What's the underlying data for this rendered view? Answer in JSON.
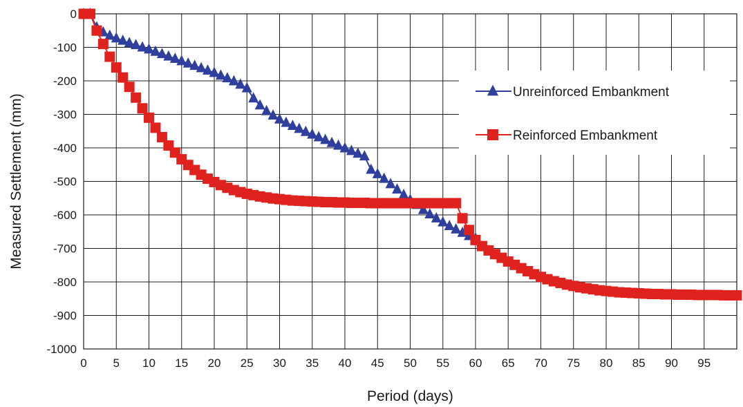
{
  "chart_data": {
    "type": "line",
    "title": "",
    "xlabel": "Period (days)",
    "ylabel": "Measured Settlement (mm)",
    "xlim": [
      0,
      100
    ],
    "ylim": [
      -1000,
      0
    ],
    "xticks": [
      0,
      5,
      10,
      15,
      20,
      25,
      30,
      35,
      40,
      45,
      50,
      55,
      60,
      65,
      70,
      75,
      80,
      85,
      90,
      95
    ],
    "yticks": [
      0,
      -100,
      -200,
      -300,
      -400,
      -500,
      -600,
      -700,
      -800,
      -900,
      -1000
    ],
    "grid": true,
    "legend_position": "right",
    "series": [
      {
        "name": "Unreinforced Embankment",
        "color": "#2e3f9e",
        "marker": "triangle",
        "x": [
          0,
          1,
          2,
          3,
          4,
          5,
          6,
          7,
          8,
          9,
          10,
          11,
          12,
          13,
          14,
          15,
          16,
          17,
          18,
          19,
          20,
          21,
          22,
          23,
          24,
          25,
          26,
          27,
          28,
          29,
          30,
          31,
          32,
          33,
          34,
          35,
          36,
          37,
          38,
          39,
          40,
          41,
          42,
          43,
          44,
          45,
          46,
          47,
          48,
          49,
          50,
          51,
          52,
          53,
          54,
          55,
          56,
          57,
          58,
          59,
          60
        ],
        "y": [
          0,
          0,
          -40,
          -55,
          -65,
          -73,
          -80,
          -87,
          -93,
          -100,
          -106,
          -113,
          -120,
          -127,
          -134,
          -141,
          -148,
          -155,
          -162,
          -169,
          -176,
          -184,
          -192,
          -201,
          -211,
          -222,
          -252,
          -273,
          -290,
          -303,
          -315,
          -325,
          -334,
          -343,
          -352,
          -360,
          -368,
          -376,
          -385,
          -393,
          -401,
          -409,
          -417,
          -425,
          -465,
          -478,
          -492,
          -508,
          -524,
          -540,
          -555,
          -570,
          -585,
          -598,
          -610,
          -622,
          -633,
          -643,
          -653,
          -663,
          -670
        ]
      },
      {
        "name": "Reinforced Embankment",
        "color": "#e0221e",
        "marker": "square",
        "x": [
          0,
          1,
          2,
          3,
          4,
          5,
          6,
          7,
          8,
          9,
          10,
          11,
          12,
          13,
          14,
          15,
          16,
          17,
          18,
          19,
          20,
          21,
          22,
          23,
          24,
          25,
          26,
          27,
          28,
          29,
          30,
          31,
          32,
          33,
          34,
          35,
          36,
          37,
          38,
          39,
          40,
          41,
          42,
          43,
          44,
          45,
          46,
          47,
          48,
          49,
          50,
          51,
          52,
          53,
          54,
          55,
          56,
          57,
          58,
          59,
          60,
          61,
          62,
          63,
          64,
          65,
          66,
          67,
          68,
          69,
          70,
          71,
          72,
          73,
          74,
          75,
          76,
          77,
          78,
          79,
          80,
          81,
          82,
          83,
          84,
          85,
          86,
          87,
          88,
          89,
          90,
          91,
          92,
          93,
          94,
          95,
          96,
          97,
          98,
          99,
          100
        ],
        "y": [
          0,
          0,
          -50,
          -90,
          -128,
          -160,
          -190,
          -218,
          -250,
          -282,
          -310,
          -340,
          -368,
          -393,
          -414,
          -434,
          -451,
          -466,
          -480,
          -492,
          -502,
          -511,
          -519,
          -526,
          -532,
          -537,
          -541,
          -545,
          -548,
          -551,
          -553,
          -555,
          -557,
          -558,
          -559,
          -560,
          -561,
          -562,
          -562,
          -563,
          -563,
          -564,
          -564,
          -564,
          -565,
          -565,
          -565,
          -565,
          -565,
          -565,
          -565,
          -565,
          -565,
          -565,
          -565,
          -565,
          -565,
          -565,
          -610,
          -645,
          -675,
          -693,
          -706,
          -717,
          -728,
          -739,
          -749,
          -759,
          -768,
          -777,
          -785,
          -792,
          -798,
          -803,
          -808,
          -812,
          -816,
          -819,
          -822,
          -825,
          -827,
          -829,
          -831,
          -832,
          -833,
          -834,
          -835,
          -836,
          -836,
          -837,
          -837,
          -838,
          -838,
          -838,
          -839,
          -839,
          -839,
          -839,
          -840,
          -840,
          -840
        ]
      }
    ]
  }
}
